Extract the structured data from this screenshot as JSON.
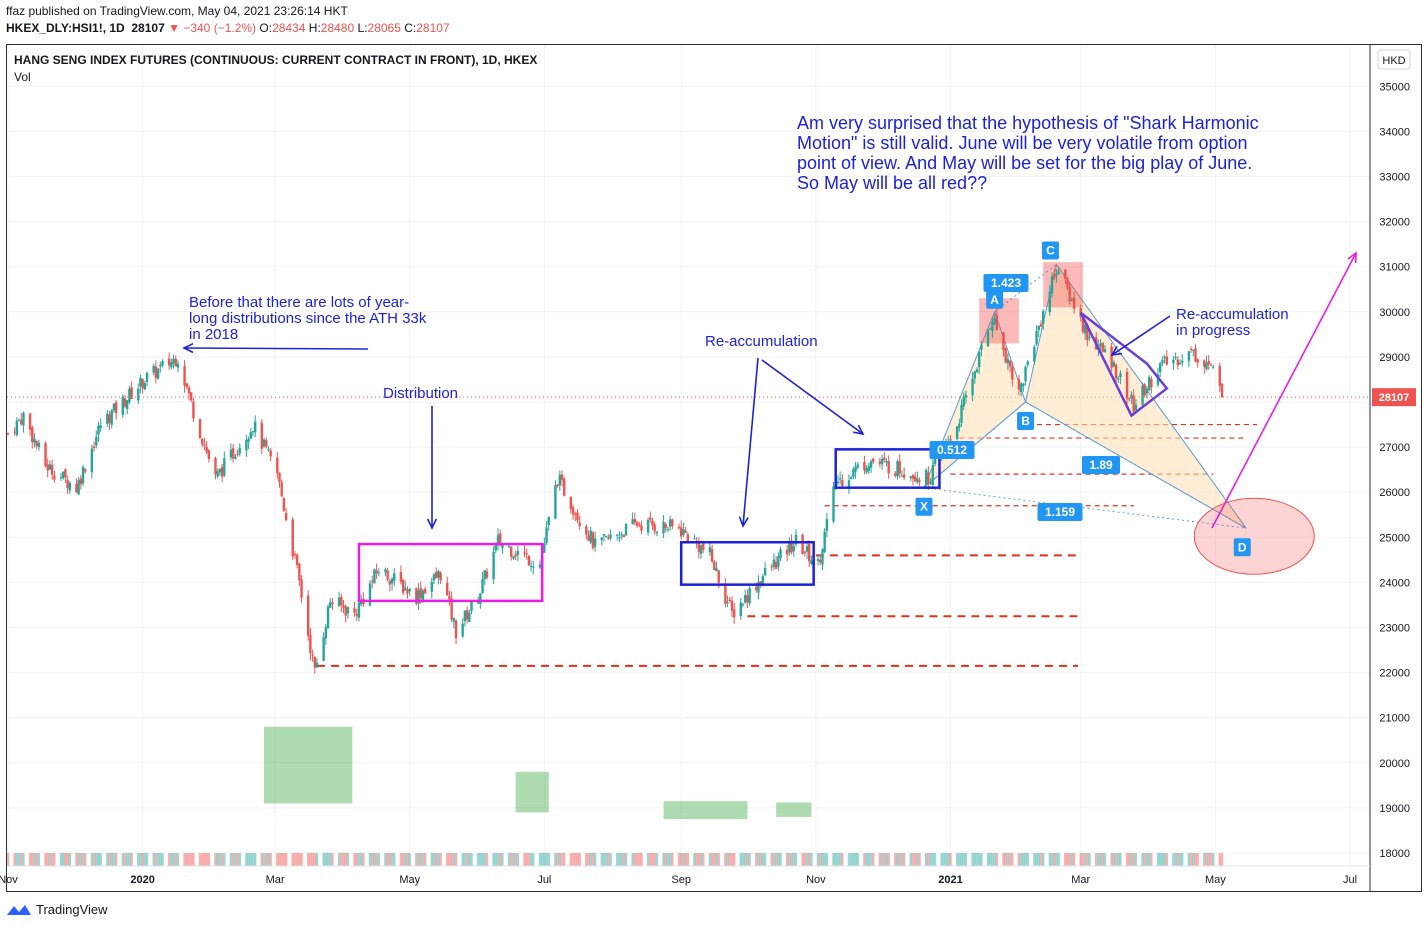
{
  "header": {
    "published": "ffaz published on TradingView.com, May 04, 2021 23:26:14 HKT",
    "symbol": "HKEX_DLY:HSI1!, 1D",
    "last": "28107",
    "change": "−340 (−1.2%)",
    "o_label": "O:",
    "o": "28434",
    "h_label": "H:",
    "h": "28480",
    "l_label": "L:",
    "l": "28065",
    "c_label": "C:",
    "c": "28107"
  },
  "chart_title": "HANG SENG INDEX FUTURES (CONTINUOUS: CURRENT CONTRACT IN FRONT), 1D, HKEX",
  "vol_label": "Vol",
  "currency": "HKD",
  "last_price_label": "28107",
  "footer_brand": "TradingView",
  "colors": {
    "up": "#26a69a",
    "down": "#ef5350",
    "annot_blue": "#1e22d6",
    "magenta": "#e91ee0",
    "badge": "#2196f3"
  },
  "chart_data": {
    "type": "candlestick",
    "ylim": [
      17600,
      35600
    ],
    "y_ticks": [
      18000,
      19000,
      20000,
      21000,
      22000,
      23000,
      24000,
      25000,
      26000,
      27000,
      28000,
      29000,
      30000,
      31000,
      32000,
      33000,
      34000,
      35000
    ],
    "x_ticks": [
      {
        "label": "Nov",
        "date": "2019-11-01"
      },
      {
        "label": "2020",
        "date": "2020-01-01"
      },
      {
        "label": "Mar",
        "date": "2020-03-01"
      },
      {
        "label": "May",
        "date": "2020-05-01"
      },
      {
        "label": "Jul",
        "date": "2020-07-01"
      },
      {
        "label": "Sep",
        "date": "2020-09-01"
      },
      {
        "label": "Nov",
        "date": "2020-11-01"
      },
      {
        "label": "2021",
        "date": "2021-01-01"
      },
      {
        "label": "Mar",
        "date": "2021-03-01"
      },
      {
        "label": "May",
        "date": "2021-05-01"
      },
      {
        "label": "Jul",
        "date": "2021-07-01"
      }
    ],
    "price_path": [
      [
        "2019-11-01",
        27300
      ],
      [
        "2019-11-08",
        27700
      ],
      [
        "2019-11-18",
        26600
      ],
      [
        "2019-12-02",
        26100
      ],
      [
        "2019-12-13",
        27500
      ],
      [
        "2020-01-02",
        28500
      ],
      [
        "2020-01-17",
        29000
      ],
      [
        "2020-01-24",
        27800
      ],
      [
        "2020-02-03",
        26300
      ],
      [
        "2020-02-20",
        27500
      ],
      [
        "2020-03-02",
        26400
      ],
      [
        "2020-03-12",
        24000
      ],
      [
        "2020-03-19",
        22000
      ],
      [
        "2020-03-26",
        23600
      ],
      [
        "2020-04-06",
        23300
      ],
      [
        "2020-04-17",
        24300
      ],
      [
        "2020-05-04",
        23700
      ],
      [
        "2020-05-15",
        24200
      ],
      [
        "2020-05-22",
        22900
      ],
      [
        "2020-06-01",
        23700
      ],
      [
        "2020-06-10",
        24900
      ],
      [
        "2020-06-29",
        24400
      ],
      [
        "2020-07-07",
        26300
      ],
      [
        "2020-07-24",
        24800
      ],
      [
        "2020-08-12",
        25300
      ],
      [
        "2020-08-31",
        25200
      ],
      [
        "2020-09-14",
        24600
      ],
      [
        "2020-09-24",
        23300
      ],
      [
        "2020-10-09",
        24200
      ],
      [
        "2020-10-23",
        24900
      ],
      [
        "2020-11-02",
        24400
      ],
      [
        "2020-11-10",
        26200
      ],
      [
        "2020-11-25",
        26700
      ],
      [
        "2020-12-10",
        26500
      ],
      [
        "2020-12-22",
        26300
      ],
      [
        "2021-01-04",
        27500
      ],
      [
        "2021-01-20",
        29900
      ],
      [
        "2021-02-01",
        28200
      ],
      [
        "2021-02-18",
        31000
      ],
      [
        "2021-03-04",
        29500
      ],
      [
        "2021-03-15",
        28900
      ],
      [
        "2021-03-25",
        27900
      ],
      [
        "2021-04-06",
        28800
      ],
      [
        "2021-04-20",
        29100
      ],
      [
        "2021-04-29",
        28800
      ],
      [
        "2021-05-04",
        28107
      ]
    ],
    "volume_path": [
      [
        "2019-11-01",
        1900
      ],
      [
        "2019-12-15",
        1850
      ],
      [
        "2020-01-20",
        2000
      ],
      [
        "2020-02-20",
        1900
      ],
      [
        "2020-03-05",
        2050
      ],
      [
        "2020-03-18",
        2200
      ],
      [
        "2020-04-10",
        1950
      ],
      [
        "2020-05-20",
        1900
      ],
      [
        "2020-06-30",
        1950
      ],
      [
        "2020-07-10",
        2050
      ],
      [
        "2020-08-20",
        1850
      ],
      [
        "2020-09-20",
        1950
      ],
      [
        "2020-10-15",
        1900
      ],
      [
        "2020-11-05",
        1950
      ],
      [
        "2021-01-20",
        1900
      ],
      [
        "2021-02-20",
        1950
      ],
      [
        "2021-03-20",
        1900
      ],
      [
        "2021-05-04",
        1830
      ]
    ],
    "last_price": 28107,
    "patterns": {
      "points": [
        {
          "label": "X",
          "date": "2020-12-20",
          "price": 26100
        },
        {
          "label": "A",
          "date": "2021-01-21",
          "price": 30000
        },
        {
          "label": "B",
          "date": "2021-02-04",
          "price": 28000
        },
        {
          "label": "C",
          "date": "2021-02-18",
          "price": 31050
        },
        {
          "label": "D",
          "date": "2021-05-15",
          "price": 25200
        }
      ],
      "ratios": [
        "0.512",
        "1.423",
        "1.89",
        "1.159"
      ]
    },
    "annotations": [
      "Before that there are lots of year-long distributions since the ATH 33k in 2018",
      "Distribution",
      "Re-accumulation",
      "Re-accumulation in progress",
      "Am very surprised that the hypothesis of \"Shark Harmonic Motion\" is still valid. June will be very volatile from option point of view. And May will be set for the big play of June. So May will be all red??"
    ]
  },
  "annotations_text": {
    "note_before_l1": "Before that there are lots of year-",
    "note_before_l2": "long distributions since the ATH 33k",
    "note_before_l3": "in 2018",
    "distribution": "Distribution",
    "reacc": "Re-accumulation",
    "reacc_prog_l1": "Re-accumulation",
    "reacc_prog_l2": "in progress",
    "big_l1": "Am very surprised that the hypothesis of \"Shark Harmonic",
    "big_l2": "Motion\" is still valid. June will be very volatile from option",
    "big_l3": "point of view. And May will be set for the big play of June.",
    "big_l4": "So May will be all red??",
    "pt_x": "X",
    "pt_a": "A",
    "pt_b": "B",
    "pt_c": "C",
    "pt_d": "D",
    "r_0512": "0.512",
    "r_1423": "1.423",
    "r_189": "1.89",
    "r_1159": "1.159"
  }
}
